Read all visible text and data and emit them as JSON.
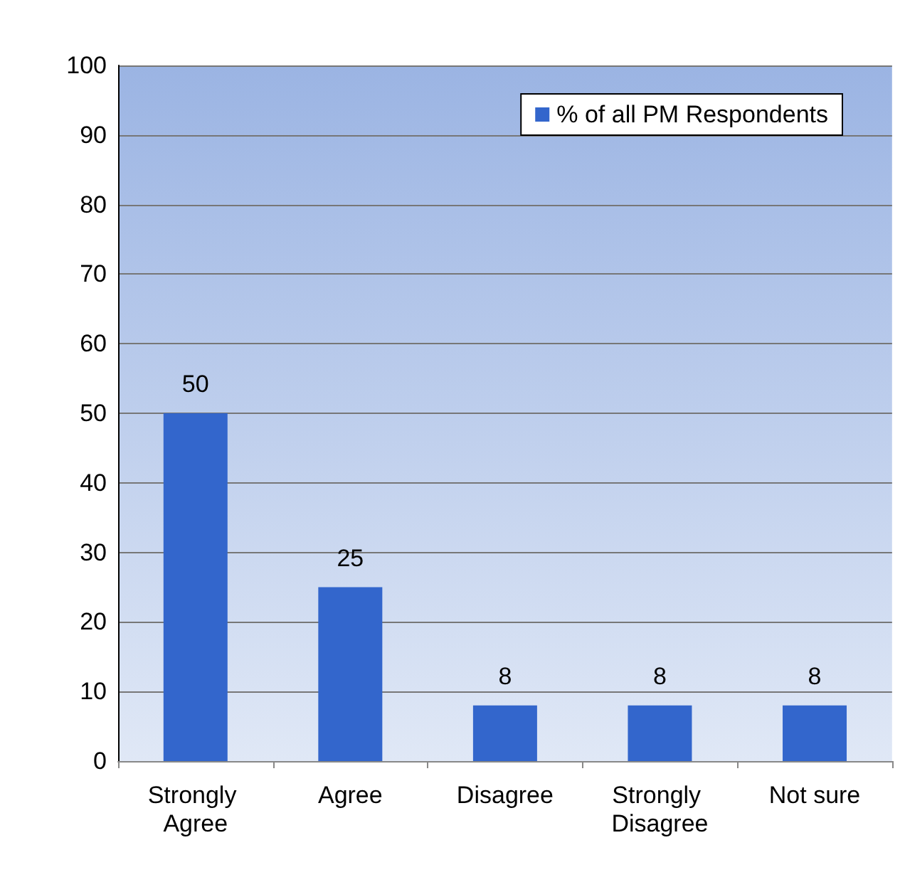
{
  "chart_data": {
    "type": "bar",
    "categories": [
      "Strongly Agree",
      "Agree",
      "Disagree",
      "Strongly Disagree",
      "Not sure"
    ],
    "series": [
      {
        "name": "% of all PM Respondents",
        "color": "#3366cc",
        "values": [
          50,
          25,
          8,
          8,
          8
        ]
      }
    ],
    "ylim": [
      0,
      100
    ],
    "yticks": [
      0,
      10,
      20,
      30,
      40,
      50,
      60,
      70,
      80,
      90,
      100
    ],
    "grid": "y",
    "legend": "top right",
    "data_labels": true
  }
}
